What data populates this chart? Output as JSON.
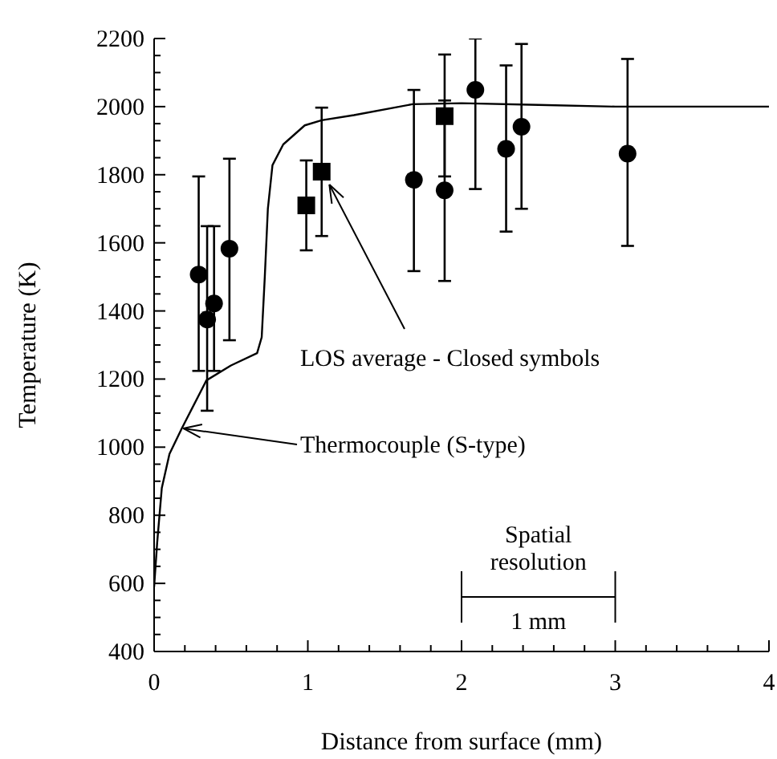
{
  "chart_data": {
    "type": "scatter",
    "xlabel": "Distance from surface (mm)",
    "ylabel": "Temperature (K)",
    "xlim": [
      0,
      4
    ],
    "ylim": [
      400,
      2200
    ],
    "xticks": [
      0,
      {
        "value": 0.2,
        "label": null
      },
      {
        "value": 0.4,
        "label": null
      },
      {
        "value": 0.6,
        "label": null
      },
      {
        "value": 0.8,
        "label": null
      },
      1,
      {
        "value": 1.2,
        "label": null
      },
      {
        "value": 1.4,
        "label": null
      },
      {
        "value": 1.6,
        "label": null
      },
      {
        "value": 1.8,
        "label": null
      },
      2,
      {
        "value": 2.2,
        "label": null
      },
      {
        "value": 2.4,
        "label": null
      },
      {
        "value": 2.6,
        "label": null
      },
      {
        "value": 2.8,
        "label": null
      },
      3,
      {
        "value": 3.2,
        "label": null
      },
      {
        "value": 3.4,
        "label": null
      },
      {
        "value": 3.6,
        "label": null
      },
      {
        "value": 3.8,
        "label": null
      },
      4
    ],
    "yticks": [
      400,
      {
        "value": 450,
        "label": null
      },
      {
        "value": 500,
        "label": null
      },
      {
        "value": 550,
        "label": null
      },
      600,
      {
        "value": 650,
        "label": null
      },
      {
        "value": 700,
        "label": null
      },
      {
        "value": 750,
        "label": null
      },
      800,
      {
        "value": 850,
        "label": null
      },
      {
        "value": 900,
        "label": null
      },
      {
        "value": 950,
        "label": null
      },
      1000,
      {
        "value": 1050,
        "label": null
      },
      {
        "value": 1100,
        "label": null
      },
      {
        "value": 1150,
        "label": null
      },
      1200,
      {
        "value": 1250,
        "label": null
      },
      {
        "value": 1300,
        "label": null
      },
      {
        "value": 1350,
        "label": null
      },
      1400,
      {
        "value": 1450,
        "label": null
      },
      {
        "value": 1500,
        "label": null
      },
      {
        "value": 1550,
        "label": null
      },
      1600,
      {
        "value": 1650,
        "label": null
      },
      {
        "value": 1700,
        "label": null
      },
      {
        "value": 1750,
        "label": null
      },
      1800,
      {
        "value": 1850,
        "label": null
      },
      {
        "value": 1900,
        "label": null
      },
      {
        "value": 1950,
        "label": null
      },
      2000,
      {
        "value": 2050,
        "label": null
      },
      {
        "value": 2100,
        "label": null
      },
      {
        "value": 2150,
        "label": null
      },
      2200
    ],
    "tick_labels": "xy",
    "legend": false,
    "grid": false,
    "series": [
      {
        "type": "line",
        "marker": "none",
        "color": "#000000",
        "x": [
          0,
          0.02,
          0.05,
          0.1,
          0.18,
          0.34,
          0.5,
          0.67,
          0.7,
          0.72,
          0.74,
          0.77,
          0.84,
          0.98,
          1.09,
          1.3,
          1.68,
          2,
          2.5,
          3,
          3.5,
          4
        ],
        "values": [
          590,
          720,
          880,
          980,
          1055,
          1196,
          1240,
          1276,
          1323,
          1500,
          1700,
          1828,
          1889,
          1945,
          1960,
          1975,
          2007,
          2010,
          2005,
          2000,
          2000,
          2000
        ]
      },
      {
        "marker": "circle",
        "color": "#000000",
        "x": [
          0.29,
          0.345,
          0.39,
          0.49,
          1.69,
          1.89,
          2.09,
          2.29,
          2.39,
          3.08
        ],
        "values": [
          1507,
          1375,
          1422,
          1583,
          1785,
          1754,
          2049,
          1876,
          1941,
          1862
        ],
        "errors": [
          [
            1224,
            1795
          ],
          [
            1107,
            1649
          ],
          [
            1224,
            1649
          ],
          [
            1314,
            1847
          ],
          [
            1517,
            2049
          ],
          [
            1488,
            2018
          ],
          [
            1758,
            2200
          ],
          [
            1633,
            2121
          ],
          [
            1700,
            2184
          ],
          [
            1591,
            2140
          ]
        ]
      },
      {
        "marker": "square",
        "color": "#000000",
        "x": [
          0.99,
          1.09,
          1.89
        ],
        "values": [
          1710,
          1809,
          1972
        ],
        "errors": [
          [
            1578,
            1842
          ],
          [
            1620,
            1997
          ],
          [
            1795,
            2153
          ]
        ]
      }
    ],
    "annotations": [
      {
        "text": "LOS average - Closed symbols",
        "x": 1.14,
        "y": 1771
      },
      {
        "text": "Thermocouple (S-type)",
        "x": 0.19,
        "y": 1055
      },
      "Spatial resolution",
      "1 mm"
    ]
  }
}
